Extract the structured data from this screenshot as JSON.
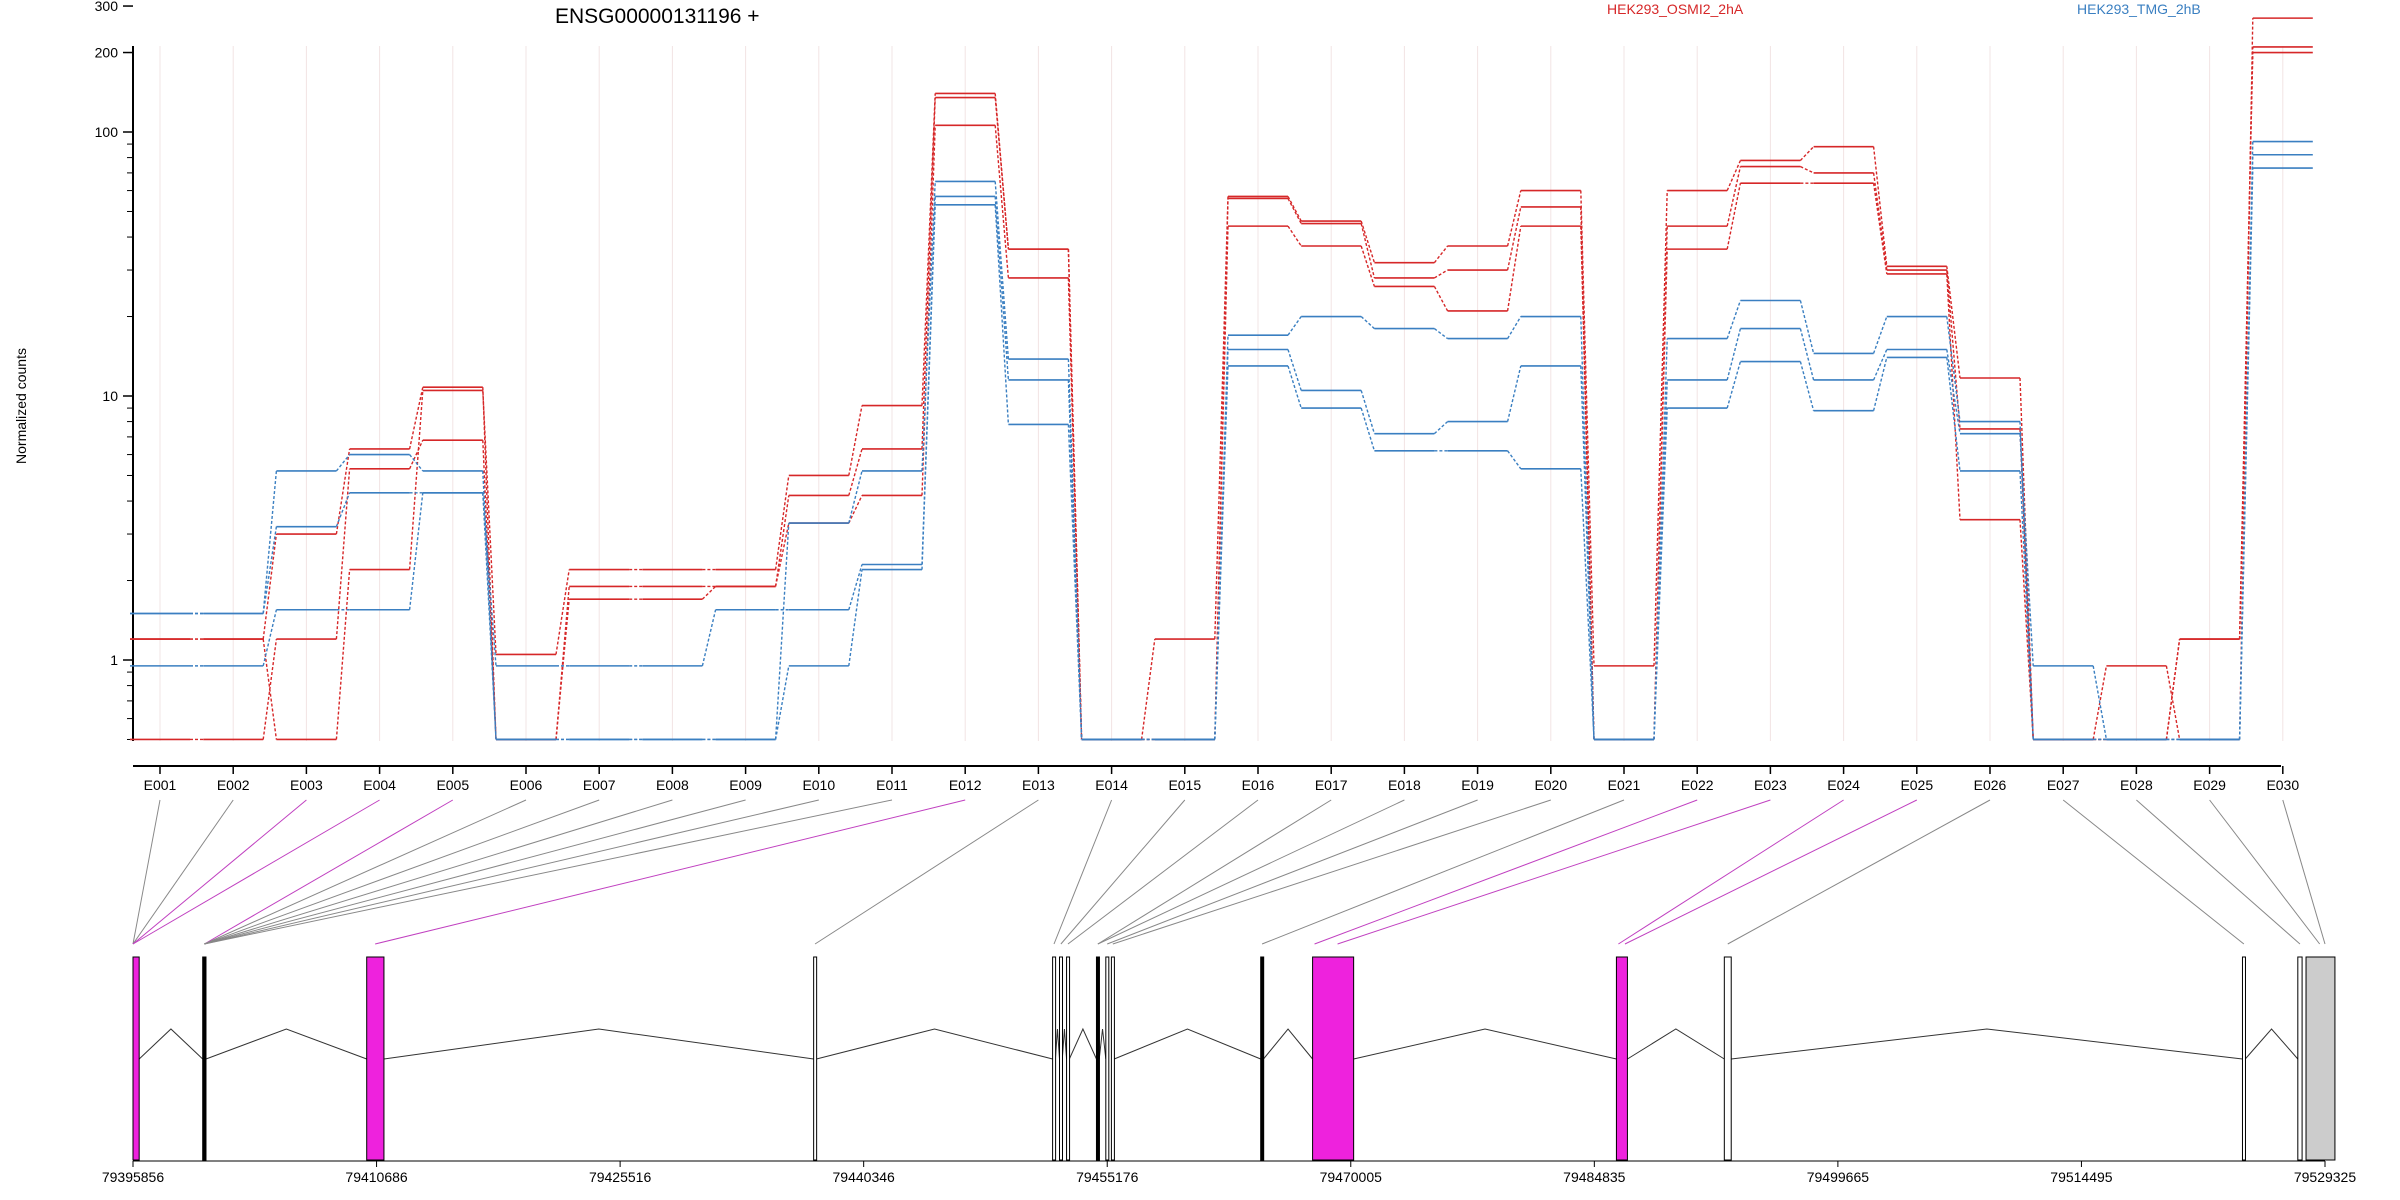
{
  "chart_data": {
    "type": "line",
    "title": "ENSG00000131196 +",
    "ylabel": "Normalized counts",
    "y_scale": "log",
    "y_ticks": [
      "1",
      "10",
      "100",
      "200",
      "300"
    ],
    "ylim": [
      0.5,
      380
    ],
    "legend_placement": "top",
    "categories": [
      "E001",
      "E002",
      "E003",
      "E004",
      "E005",
      "E006",
      "E007",
      "E008",
      "E009",
      "E010",
      "E011",
      "E012",
      "E013",
      "E014",
      "E015",
      "E016",
      "E017",
      "E018",
      "E019",
      "E020",
      "E021",
      "E022",
      "E023",
      "E024",
      "E025",
      "E026",
      "E027",
      "E028",
      "E029",
      "E030"
    ],
    "groups": [
      {
        "label": "HEK293_OSMI2_2hA",
        "color": "#d62728"
      },
      {
        "label": "HEK293_TMG_2hB",
        "color": "#3a7fc1"
      }
    ],
    "series": [
      {
        "group": 0,
        "values": [
          1.2,
          1.2,
          0.5,
          2.2,
          10.5,
          1.05,
          2.2,
          2.2,
          2.2,
          5.0,
          9.2,
          140,
          36,
          0.5,
          1.2,
          57,
          46,
          32,
          37,
          60,
          0.95,
          60,
          78,
          88,
          31,
          11.7,
          0.5,
          0.95,
          0.5,
          270
        ]
      },
      {
        "group": 0,
        "values": [
          1.2,
          1.2,
          3.0,
          6.3,
          10.8,
          0.5,
          1.7,
          1.7,
          1.9,
          4.2,
          6.3,
          135,
          36,
          0.5,
          0.5,
          56,
          45,
          28,
          30,
          52,
          0.5,
          44,
          74,
          70,
          30,
          7.5,
          0.5,
          0.5,
          1.2,
          210
        ]
      },
      {
        "group": 0,
        "values": [
          0.5,
          0.5,
          1.2,
          5.3,
          6.8,
          0.5,
          1.9,
          1.9,
          1.9,
          3.3,
          4.2,
          106,
          28,
          0.5,
          0.5,
          44,
          37,
          26,
          21,
          44,
          0.5,
          36,
          64,
          64,
          29,
          3.4,
          0.5,
          0.5,
          1.2,
          200
        ]
      },
      {
        "group": 1,
        "values": [
          1.5,
          1.5,
          5.2,
          6.0,
          5.2,
          0.5,
          0.5,
          0.5,
          0.5,
          3.3,
          5.2,
          65,
          13.8,
          0.5,
          0.5,
          17,
          20,
          18,
          16.5,
          20,
          0.5,
          16.5,
          23,
          14.5,
          20,
          8.0,
          0.5,
          0.5,
          0.5,
          92
        ]
      },
      {
        "group": 1,
        "values": [
          0.95,
          0.95,
          1.55,
          1.55,
          4.3,
          0.95,
          0.95,
          0.95,
          1.55,
          1.55,
          2.3,
          57,
          11.5,
          0.5,
          0.5,
          15,
          10.5,
          7.2,
          8.0,
          13,
          0.5,
          11.5,
          18,
          11.5,
          15,
          7.2,
          0.95,
          0.5,
          0.5,
          82
        ]
      },
      {
        "group": 1,
        "values": [
          1.5,
          1.5,
          3.2,
          4.3,
          4.3,
          0.5,
          0.5,
          0.5,
          0.5,
          0.95,
          2.2,
          53,
          7.8,
          0.5,
          0.5,
          13,
          9.0,
          6.2,
          6.2,
          5.3,
          0.5,
          9.0,
          13.5,
          8.8,
          14,
          5.2,
          0.5,
          0.5,
          0.5,
          73
        ]
      }
    ],
    "genome_axis_labels": [
      "79395856",
      "79410686",
      "79425516",
      "79440346",
      "79455176",
      "79470005",
      "79484835",
      "79499665",
      "79514495",
      "79529325"
    ]
  },
  "colors": {
    "osmi_red": "#d62728",
    "tmg_blue": "#3a7fc1",
    "highlight_exon": "#ee22dd",
    "highlight_connector": "#c040c0",
    "normal_connector": "#888888",
    "last_exon_fill": "#cccccc"
  },
  "gene_model": {
    "min_coord": 79395856,
    "max_coord": 79529325,
    "exons": [
      {
        "start": 79395856,
        "end": 79396232,
        "fill": "#ee22dd"
      },
      {
        "start": 79400100,
        "end": 79400300,
        "fill": "#000000"
      },
      {
        "start": 79410086,
        "end": 79411136,
        "fill": "#ee22dd"
      },
      {
        "start": 79437300,
        "end": 79437470,
        "fill": "#ffffff"
      },
      {
        "start": 79451850,
        "end": 79452020,
        "fill": "#ffffff"
      },
      {
        "start": 79452270,
        "end": 79452440,
        "fill": "#ffffff"
      },
      {
        "start": 79452700,
        "end": 79452870,
        "fill": "#ffffff"
      },
      {
        "start": 79454520,
        "end": 79454690,
        "fill": "#000000"
      },
      {
        "start": 79455090,
        "end": 79455260,
        "fill": "#ffffff"
      },
      {
        "start": 79455430,
        "end": 79455600,
        "fill": "#ffffff"
      },
      {
        "start": 79464520,
        "end": 79464690,
        "fill": "#000000"
      },
      {
        "start": 79467680,
        "end": 79470180,
        "fill": "#ee22dd"
      },
      {
        "start": 79486180,
        "end": 79486850,
        "fill": "#ee22dd"
      },
      {
        "start": 79492750,
        "end": 79493170,
        "fill": "#ffffff"
      },
      {
        "start": 79524300,
        "end": 79524470,
        "fill": "#ffffff"
      },
      {
        "start": 79527670,
        "end": 79527930,
        "fill": "#ffffff"
      },
      {
        "start": 79528170,
        "end": 79529930,
        "fill": "#cccccc"
      }
    ],
    "connector_targets": [
      {
        "coord": 79395856,
        "highlight": false
      },
      {
        "coord": 79395856,
        "highlight": false
      },
      {
        "coord": 79395856,
        "highlight": true
      },
      {
        "coord": 79395856,
        "highlight": true
      },
      {
        "coord": 79400200,
        "highlight": true
      },
      {
        "coord": 79400200,
        "highlight": false
      },
      {
        "coord": 79400200,
        "highlight": false
      },
      {
        "coord": 79400200,
        "highlight": false
      },
      {
        "coord": 79400200,
        "highlight": false
      },
      {
        "coord": 79400200,
        "highlight": false
      },
      {
        "coord": 79400200,
        "highlight": false
      },
      {
        "coord": 79410600,
        "highlight": true
      },
      {
        "coord": 79437385,
        "highlight": false
      },
      {
        "coord": 79451935,
        "highlight": false
      },
      {
        "coord": 79452355,
        "highlight": false
      },
      {
        "coord": 79452785,
        "highlight": false
      },
      {
        "coord": 79454605,
        "highlight": false
      },
      {
        "coord": 79454605,
        "highlight": false
      },
      {
        "coord": 79455175,
        "highlight": false
      },
      {
        "coord": 79455515,
        "highlight": false
      },
      {
        "coord": 79464605,
        "highlight": false
      },
      {
        "coord": 79467800,
        "highlight": true
      },
      {
        "coord": 79469200,
        "highlight": true
      },
      {
        "coord": 79486300,
        "highlight": true
      },
      {
        "coord": 79486700,
        "highlight": true
      },
      {
        "coord": 79492960,
        "highlight": false
      },
      {
        "coord": 79524385,
        "highlight": false
      },
      {
        "coord": 79527800,
        "highlight": false
      },
      {
        "coord": 79529000,
        "highlight": false
      },
      {
        "coord": 79529325,
        "highlight": false
      }
    ]
  }
}
